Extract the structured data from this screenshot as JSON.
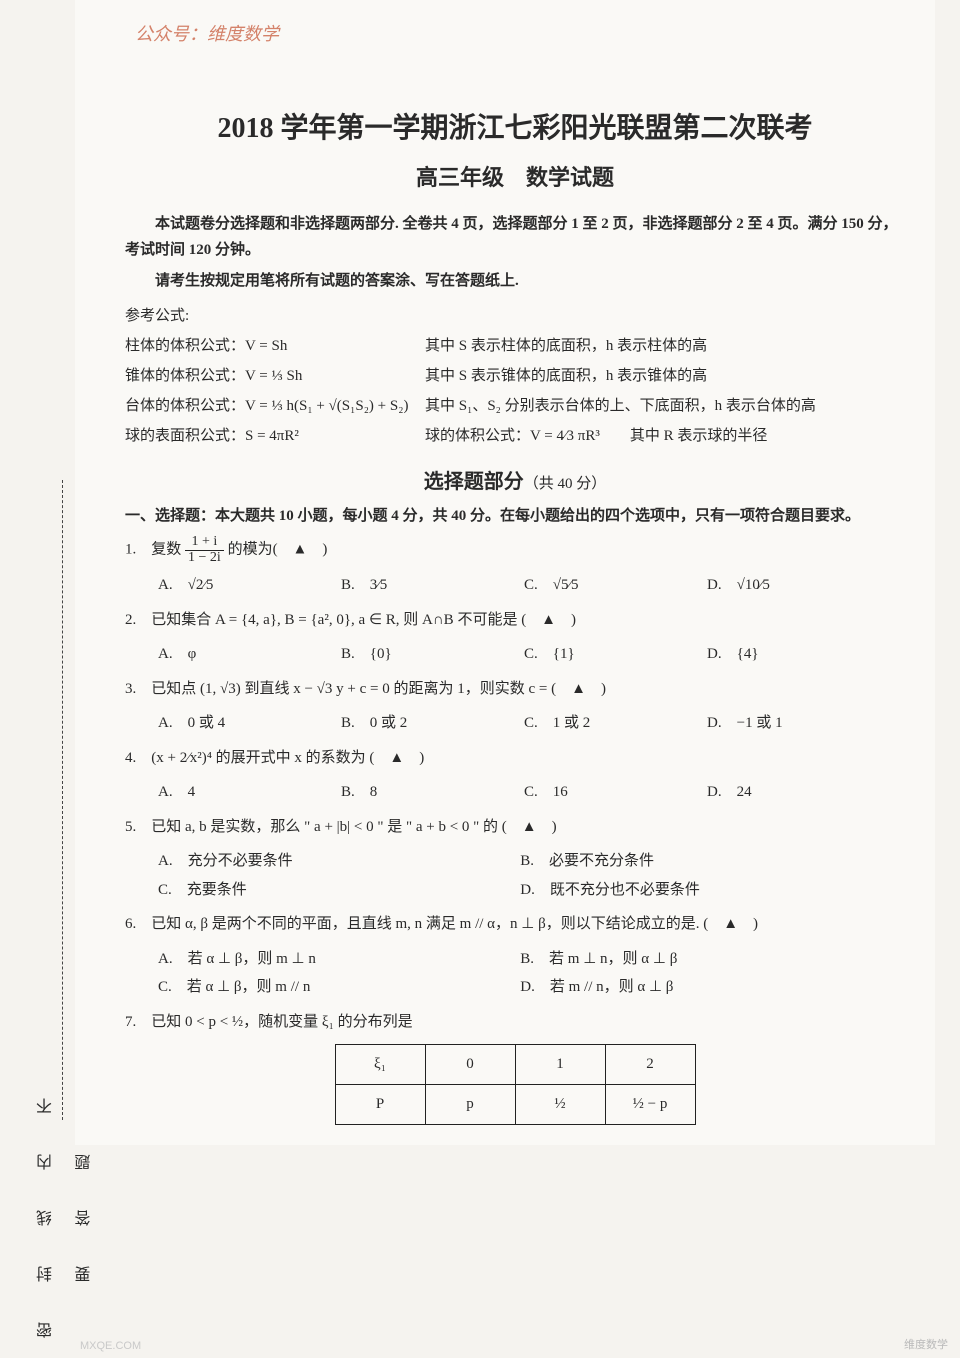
{
  "watermark_top": "公众号：维度数学",
  "title": "2018 学年第一学期浙江七彩阳光联盟第二次联考",
  "subtitle": "高三年级　数学试题",
  "intro_lines": [
    "本试题卷分选择题和非选择题两部分. 全卷共 4 页，选择题部分 1 至 2 页，非选择题部分 2 至 4 页。满分 150 分，考试时间 120 分钟。",
    "请考生按规定用笔将所有试题的答案涂、写在答题纸上."
  ],
  "formula_heading": "参考公式:",
  "formulas": [
    {
      "left": "柱体的体积公式：V = Sh",
      "right": "其中 S 表示柱体的底面积，h 表示柱体的高"
    },
    {
      "left": "锥体的体积公式：V = ⅓ Sh",
      "right": "其中 S 表示锥体的底面积，h 表示锥体的高"
    },
    {
      "left": "台体的体积公式：V = ⅓ h(S₁ + √(S₁S₂) + S₂)",
      "right": "其中 S₁、S₂ 分别表示台体的上、下底面积，h 表示台体的高"
    },
    {
      "left": "球的表面积公式：S = 4πR²",
      "right": "球的体积公式：V = 4⁄3 πR³　　其中 R 表示球的半径"
    }
  ],
  "section": {
    "title": "选择题部分",
    "sub": "（共 40 分）"
  },
  "section_desc": "一、选择题：本大题共 10 小题，每小题 4 分，共 40 分。在每小题给出的四个选项中，只有一项符合题目要求。",
  "q1": {
    "stem_pre": "1.　复数 ",
    "frac_n": "1 + i",
    "frac_d": "1 − 2i",
    "stem_post": " 的模为(　▲　)",
    "opts": [
      "A.　√2⁄5",
      "B.　3⁄5",
      "C.　√5⁄5",
      "D.　√10⁄5"
    ]
  },
  "q2": {
    "stem": "2.　已知集合 A = {4, a}, B = {a², 0}, a ∈ R, 则 A∩B 不可能是 (　▲　)",
    "opts": [
      "A.　φ",
      "B.　{0}",
      "C.　{1}",
      "D.　{4}"
    ]
  },
  "q3": {
    "stem": "3.　已知点 (1, √3) 到直线 x − √3 y + c = 0 的距离为 1，则实数 c = (　▲　)",
    "opts": [
      "A.　0 或 4",
      "B.　0 或 2",
      "C.　1 或 2",
      "D.　−1 或 1"
    ]
  },
  "q4": {
    "stem": "4.　(x + 2⁄x²)⁴ 的展开式中 x 的系数为 (　▲　)",
    "opts": [
      "A.　4",
      "B.　8",
      "C.　16",
      "D.　24"
    ]
  },
  "q5": {
    "stem": "5.　已知 a, b 是实数，那么 \" a + |b| < 0 \" 是 \" a + b < 0 \" 的 (　▲　)",
    "opts": [
      "A.　充分不必要条件",
      "B.　必要不充分条件",
      "C.　充要条件",
      "D.　既不充分也不必要条件"
    ]
  },
  "q6": {
    "stem": "6.　已知 α, β 是两个不同的平面，且直线 m, n 满足 m // α，n ⊥ β，则以下结论成立的是.  (　▲　)",
    "opts": [
      "A.　若 α ⊥ β，则 m ⊥ n",
      "B.　若 m ⊥ n，则 α ⊥ β",
      "C.　若 α ⊥ β，则 m // n",
      "D.　若 m // n，则 α ⊥ β"
    ]
  },
  "q7": {
    "stem": "7.　已知 0 < p < ½，随机变量 ξ₁ 的分布列是",
    "table": {
      "row1": [
        "ξ₁",
        "0",
        "1",
        "2"
      ],
      "row2": [
        "P",
        "p",
        "½",
        "½ − p"
      ]
    }
  },
  "sidebar": "密 封 线 内 不 要 答 题",
  "wm_br": "维度数学",
  "wm_bl": "MXQE.COM"
}
